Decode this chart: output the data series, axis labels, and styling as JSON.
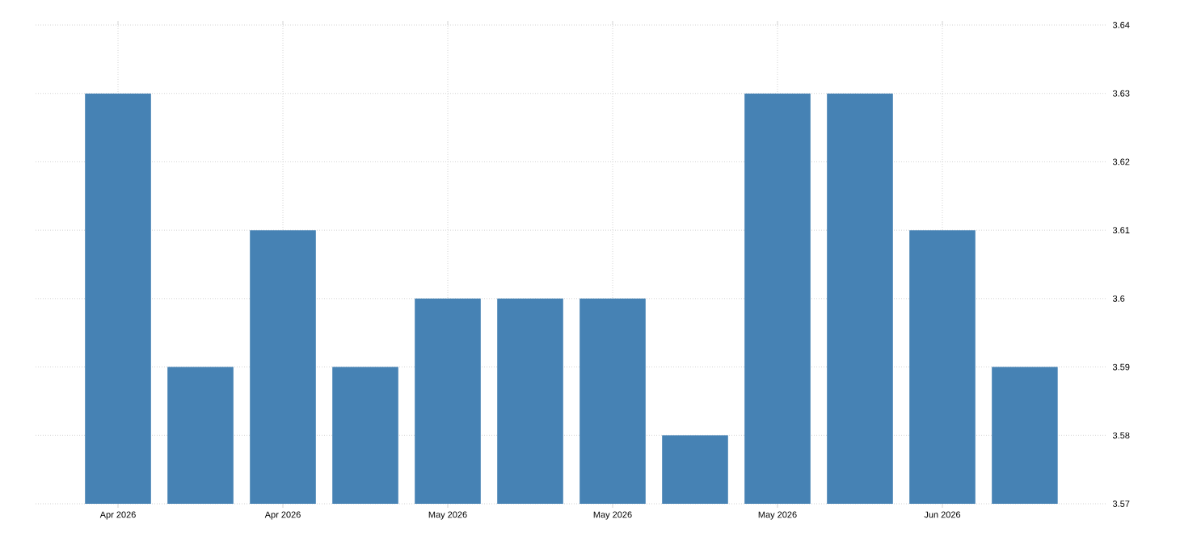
{
  "chart_data": {
    "type": "bar",
    "categories": [
      "Apr 2026",
      null,
      "Apr 2026",
      null,
      "May 2026",
      null,
      "May 2026",
      null,
      "May 2026",
      null,
      "Jun 2026",
      null
    ],
    "values": [
      3.63,
      3.59,
      3.61,
      3.59,
      3.6,
      3.6,
      3.6,
      3.58,
      3.63,
      3.63,
      3.61,
      3.59
    ],
    "color": "#4682b4",
    "ylim": [
      3.57,
      3.64
    ],
    "yticks": [
      3.57,
      3.58,
      3.59,
      3.6,
      3.61,
      3.62,
      3.63,
      3.64
    ],
    "grid": true
  }
}
